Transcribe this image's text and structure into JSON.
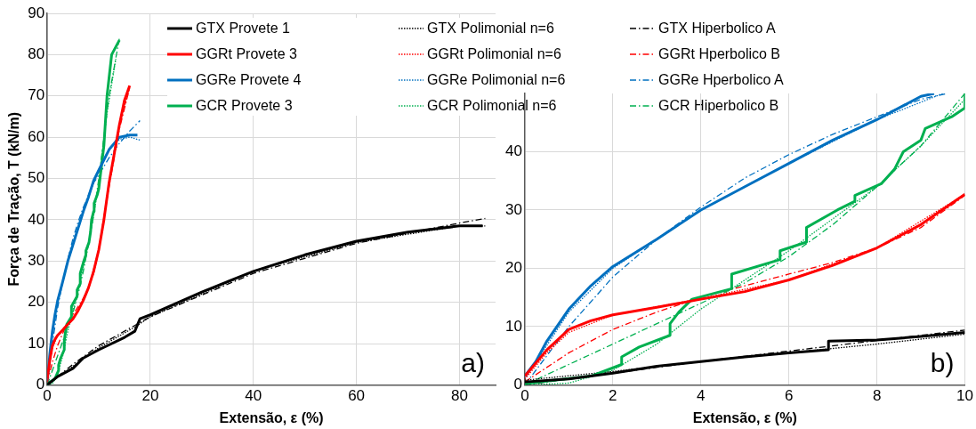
{
  "chart_data": [
    {
      "type": "line",
      "xlabel": "Extensão, ε (%)",
      "ylabel": "Força de Tração, T (kN/m)",
      "xlim": [
        0,
        87
      ],
      "ylim": [
        0,
        90
      ],
      "xticks": [
        0,
        20,
        40,
        60,
        80
      ],
      "yticks": [
        0,
        10,
        20,
        30,
        40,
        50,
        60,
        70,
        80,
        90
      ],
      "grid": true,
      "legend": "top right",
      "annotations": [
        "a)"
      ],
      "series": [
        {
          "name": "GTX Provete 1",
          "color": "#000000",
          "line_style": "solid",
          "x": [
            0,
            2,
            5,
            7,
            10,
            15,
            17,
            18,
            20,
            30,
            40,
            50,
            60,
            70,
            80,
            84.5
          ],
          "values": [
            0,
            2,
            4,
            6.5,
            8.5,
            11.5,
            13,
            16,
            17,
            22.5,
            27.5,
            31.5,
            34.8,
            37,
            38.5,
            38.5
          ]
        },
        {
          "name": "GGRt Provete 3",
          "color": "#ff0000",
          "line_style": "solid",
          "x": [
            0,
            0.5,
            1,
            1.5,
            2,
            3,
            4,
            5,
            6,
            7,
            8,
            9,
            10,
            11,
            12,
            13,
            14,
            15,
            16
          ],
          "values": [
            1.5,
            6,
            9.5,
            11,
            12,
            13.3,
            14.7,
            16,
            18,
            20.5,
            23.5,
            27.5,
            32.7,
            40,
            49,
            56,
            63,
            69,
            72.5
          ]
        },
        {
          "name": "GGRe Provete 4",
          "color": "#0070c0",
          "line_style": "solid",
          "x": [
            0,
            0.25,
            0.5,
            1,
            1.5,
            2,
            3,
            4,
            5,
            6,
            7,
            8,
            9,
            10,
            12,
            14,
            16,
            17.5
          ],
          "values": [
            1.5,
            4,
            7.5,
            13,
            17,
            20.3,
            25,
            30,
            34,
            38,
            42,
            45.5,
            49.5,
            52,
            57,
            60,
            60.5,
            60.5
          ]
        },
        {
          "name": "GCR Provete 3",
          "color": "#00b050",
          "line_style": "solid",
          "x": [
            0,
            1.5,
            2.2,
            2.2,
            2.6,
            3.3,
            3.3,
            3.5,
            3.8,
            4.7,
            4.7,
            5.8,
            5.8,
            6.4,
            6.4,
            7.1,
            7.5,
            7.5,
            8.1,
            8.4,
            8.6,
            9,
            9.1,
            9.7,
            10,
            11,
            11.6,
            12.5,
            14
          ],
          "values": [
            0.2,
            1.5,
            3.5,
            4.8,
            6.5,
            8.5,
            10.5,
            12.5,
            14.7,
            16.5,
            19,
            21.5,
            23,
            24.5,
            27,
            30,
            31.5,
            32.5,
            34.5,
            37,
            40,
            42,
            44,
            46,
            47.5,
            58,
            70,
            80,
            83.5
          ]
        },
        {
          "name": "GTX Polimonial n=6",
          "color": "#000000",
          "line_style": "dotted",
          "x": [
            0,
            5,
            10,
            17,
            20,
            40,
            60,
            80,
            85
          ],
          "values": [
            0,
            4.5,
            9,
            14,
            16.5,
            27.5,
            34.5,
            38.5,
            38.5
          ]
        },
        {
          "name": "GGRt Polimonial n=6",
          "color": "#ff0000",
          "line_style": "dotted",
          "x": [
            0,
            0.5,
            1,
            2,
            4,
            6,
            8,
            10,
            12,
            14,
            16
          ],
          "values": [
            1,
            5.5,
            9,
            12,
            14.8,
            18,
            23.5,
            32.7,
            49,
            63,
            72
          ]
        },
        {
          "name": "GGRe Polimonial n=6",
          "color": "#0070c0",
          "line_style": "dotted",
          "x": [
            0,
            1,
            2,
            4,
            6,
            8,
            10,
            12,
            14,
            16,
            18
          ],
          "values": [
            1,
            12.5,
            20,
            30,
            38,
            45.5,
            52,
            57,
            59.5,
            60,
            59.3
          ]
        },
        {
          "name": "GCR Polimonial n=6",
          "color": "#00b050",
          "line_style": "dotted",
          "x": [
            0,
            1,
            2,
            3,
            4,
            5,
            6,
            7,
            8,
            9,
            10,
            11.5,
            13.3
          ],
          "values": [
            0,
            0.3,
            2.5,
            7,
            13,
            18,
            23,
            28.5,
            34,
            41,
            49,
            65,
            79
          ]
        },
        {
          "name": "GTX Hiperbolico A",
          "color": "#000000",
          "line_style": "dashdot",
          "x": [
            0,
            5,
            10,
            20,
            40,
            60,
            80,
            85
          ],
          "values": [
            0,
            5,
            9.5,
            16.5,
            27,
            34.3,
            39.2,
            40.3
          ]
        },
        {
          "name": "GGRt Hperbolico B",
          "color": "#ff0000",
          "line_style": "dashdot",
          "x": [
            0,
            1,
            2,
            3,
            4,
            5,
            6,
            7,
            8,
            9,
            10,
            12,
            14,
            16
          ],
          "values": [
            0.5,
            5.5,
            9.5,
            12.5,
            15,
            17,
            19,
            21,
            23.5,
            27,
            32.5,
            48,
            62,
            72
          ]
        },
        {
          "name": "GGRe Hperbolico A",
          "color": "#0070c0",
          "line_style": "dashdot",
          "x": [
            0,
            0.5,
            1,
            2,
            3,
            4,
            5,
            6,
            7,
            8,
            9,
            9.6,
            12,
            14,
            16,
            18
          ],
          "values": [
            0,
            5,
            10,
            18.5,
            25,
            30.5,
            35.5,
            39.5,
            43,
            46,
            49,
            50,
            55,
            58.5,
            61.5,
            64
          ]
        },
        {
          "name": "GCR Hiperbolico B",
          "color": "#00b050",
          "line_style": "dashdot",
          "x": [
            0,
            1,
            2,
            3,
            4,
            5,
            6,
            7,
            8,
            9,
            10,
            12,
            14
          ],
          "values": [
            0,
            3.5,
            7,
            10.5,
            14,
            17.5,
            22,
            27.5,
            34,
            41,
            50,
            70,
            84
          ]
        }
      ]
    },
    {
      "type": "line",
      "xlabel": "Extensão, ε (%)",
      "xlim": [
        0,
        10
      ],
      "ylim": [
        0,
        50
      ],
      "xticks": [
        0,
        2,
        4,
        6,
        8,
        10
      ],
      "yticks": [
        0,
        10,
        20,
        30,
        40
      ],
      "grid": true,
      "annotations": [
        "b)"
      ],
      "series": [
        {
          "color": "#000000",
          "line_style": "solid",
          "x": [
            0,
            1,
            2,
            3,
            4,
            5,
            6,
            6.9,
            6.9,
            8,
            9,
            10
          ],
          "values": [
            0.5,
            1,
            2,
            3.2,
            4,
            4.8,
            5.5,
            6,
            7.5,
            7.7,
            8.3,
            9
          ]
        },
        {
          "color": "#ff0000",
          "line_style": "solid",
          "x": [
            0,
            0.5,
            1,
            1.5,
            2,
            3,
            4,
            5,
            6,
            7,
            8,
            9,
            10
          ],
          "values": [
            1.5,
            6,
            9.5,
            11,
            12,
            13.3,
            14.7,
            16,
            18,
            20.5,
            23.5,
            27.5,
            32.7
          ]
        },
        {
          "color": "#0070c0",
          "line_style": "solid",
          "x": [
            0,
            0.25,
            0.5,
            1,
            1.5,
            2,
            3,
            4,
            5,
            6,
            7,
            8,
            9,
            9.3
          ],
          "values": [
            1.5,
            4,
            7.5,
            13,
            17,
            20.3,
            25,
            30,
            34,
            38,
            42,
            45.5,
            49.5,
            50
          ]
        },
        {
          "color": "#00b050",
          "line_style": "solid",
          "x": [
            0,
            1.5,
            2.2,
            2.2,
            2.6,
            3.3,
            3.3,
            3.5,
            3.8,
            4.7,
            4.7,
            5.8,
            5.8,
            6.4,
            6.4,
            7.1,
            7.5,
            7.5,
            8.1,
            8.4,
            8.6,
            9,
            9.1,
            9.7,
            10,
            10
          ],
          "values": [
            0.2,
            1.5,
            3.5,
            4.8,
            6.5,
            8.5,
            10.5,
            12.5,
            14.7,
            16.5,
            19,
            21.5,
            23,
            24.5,
            27,
            30,
            31.5,
            32.5,
            34.5,
            37,
            40,
            42,
            44,
            46,
            47.5,
            50
          ]
        },
        {
          "color": "#000000",
          "line_style": "dotted",
          "x": [
            0,
            2,
            4,
            6,
            8,
            10
          ],
          "values": [
            0.8,
            2.3,
            4,
            5.5,
            7,
            8.7
          ]
        },
        {
          "color": "#ff0000",
          "line_style": "dotted",
          "x": [
            0,
            0.5,
            1,
            2,
            4,
            6,
            8,
            10
          ],
          "values": [
            1,
            5.5,
            9,
            12,
            14.8,
            18,
            23.5,
            32.7
          ]
        },
        {
          "color": "#0070c0",
          "line_style": "dotted",
          "x": [
            0,
            1,
            2,
            4,
            6,
            8,
            9.5
          ],
          "values": [
            1,
            12.5,
            20,
            30,
            38,
            45.5,
            50
          ]
        },
        {
          "color": "#00b050",
          "line_style": "dotted",
          "x": [
            0,
            1,
            2,
            3,
            4,
            5,
            6,
            7,
            8,
            9,
            10
          ],
          "values": [
            0,
            0.3,
            2.5,
            7,
            13,
            18,
            23,
            28.5,
            34,
            41,
            49
          ]
        },
        {
          "color": "#000000",
          "line_style": "dashdot",
          "x": [
            0,
            2,
            4,
            6,
            8,
            10
          ],
          "values": [
            0,
            2,
            4,
            5.8,
            7.6,
            9.4
          ]
        },
        {
          "color": "#ff0000",
          "line_style": "dashdot",
          "x": [
            0,
            1,
            2,
            3,
            4,
            5,
            6,
            7,
            8,
            9,
            10
          ],
          "values": [
            0.5,
            5.5,
            9.5,
            12.5,
            15,
            17,
            19,
            21,
            23.5,
            27,
            32.5
          ]
        },
        {
          "color": "#0070c0",
          "line_style": "dashdot",
          "x": [
            0,
            0.5,
            1,
            2,
            3,
            4,
            5,
            6,
            7,
            8,
            9,
            9.6
          ],
          "values": [
            0,
            5,
            10,
            18.5,
            25,
            30.5,
            35.5,
            39.5,
            43,
            46,
            49,
            50
          ]
        },
        {
          "color": "#00b050",
          "line_style": "dashdot",
          "x": [
            0,
            1,
            2,
            3,
            4,
            5,
            6,
            7,
            8,
            9,
            10
          ],
          "values": [
            0,
            3.5,
            7,
            10.5,
            14,
            17.5,
            22,
            27.5,
            34,
            41,
            50
          ]
        }
      ]
    }
  ]
}
